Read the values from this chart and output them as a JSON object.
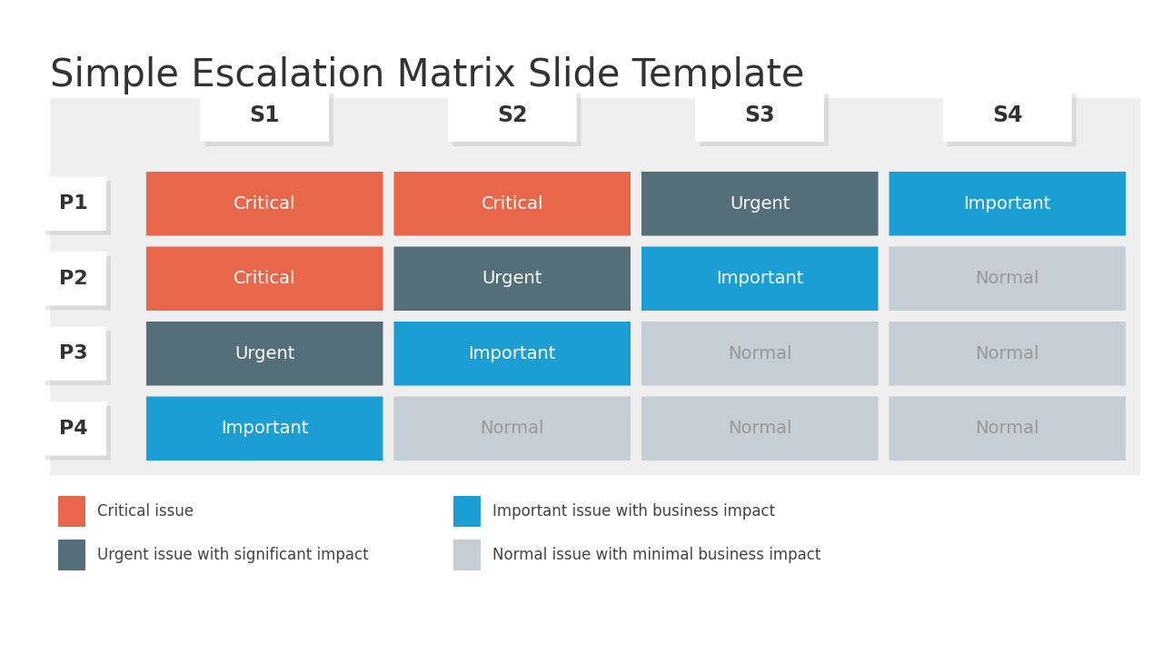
{
  "title": "Simple Escalation Matrix Slide Template",
  "title_fontsize": 30,
  "title_color": "#333333",
  "background_color": "#ffffff",
  "panel_background": "#efefef",
  "col_headers": [
    "S1",
    "S2",
    "S3",
    "S4"
  ],
  "row_headers": [
    "P1",
    "P2",
    "P3",
    "P4"
  ],
  "matrix": [
    [
      "Critical",
      "Critical",
      "Urgent",
      "Important"
    ],
    [
      "Critical",
      "Urgent",
      "Important",
      "Normal"
    ],
    [
      "Urgent",
      "Important",
      "Normal",
      "Normal"
    ],
    [
      "Important",
      "Normal",
      "Normal",
      "Normal"
    ]
  ],
  "colors": {
    "Critical": "#e8674a",
    "Urgent": "#546e7a",
    "Important": "#1a9ed4",
    "Normal": "#c5cdd5"
  },
  "text_colors": {
    "Critical": "#ffffff",
    "Urgent": "#ffffff",
    "Important": "#ffffff",
    "Normal": "#999999"
  },
  "legend": [
    {
      "label": "Critical issue",
      "color": "#e8674a"
    },
    {
      "label": "Important issue with business impact",
      "color": "#1a9ed4"
    },
    {
      "label": "Urgent issue with significant impact",
      "color": "#546e7a"
    },
    {
      "label": "Normal issue with minimal business impact",
      "color": "#c5cdd5"
    }
  ]
}
